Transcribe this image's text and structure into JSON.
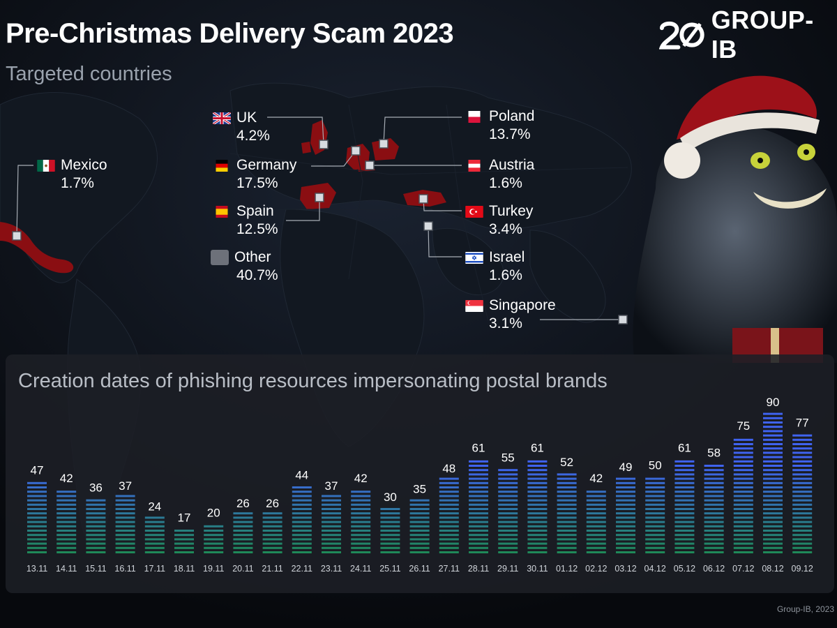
{
  "header": {
    "title": "Pre-Christmas Delivery Scam 2023",
    "subtitle": "Targeted countries",
    "logo_text": "GROUP-IB",
    "logo_number": "20"
  },
  "countries": [
    {
      "key": "uk",
      "name": "UK",
      "pct": "4.2%",
      "flag": "uk-flag-icon"
    },
    {
      "key": "germany",
      "name": "Germany",
      "pct": "17.5%",
      "flag": "germany-flag-icon"
    },
    {
      "key": "spain",
      "name": "Spain",
      "pct": "12.5%",
      "flag": "spain-flag-icon"
    },
    {
      "key": "other",
      "name": "Other",
      "pct": "40.7%",
      "flag": "gray-swatch"
    },
    {
      "key": "mexico",
      "name": "Mexico",
      "pct": "1.7%",
      "flag": "mexico-flag-icon"
    },
    {
      "key": "poland",
      "name": "Poland",
      "pct": "13.7%",
      "flag": "poland-flag-icon"
    },
    {
      "key": "austria",
      "name": "Austria",
      "pct": "1.6%",
      "flag": "austria-flag-icon"
    },
    {
      "key": "turkey",
      "name": "Turkey",
      "pct": "3.4%",
      "flag": "turkey-flag-icon"
    },
    {
      "key": "israel",
      "name": "Israel",
      "pct": "1.6%",
      "flag": "israel-flag-icon"
    },
    {
      "key": "singapore",
      "name": "Singapore",
      "pct": "3.1%",
      "flag": "singapore-flag-icon"
    }
  ],
  "chart_panel_title": "Creation dates of phishing resources impersonating postal brands",
  "chart_data": {
    "type": "bar",
    "title": "Creation dates of phishing resources impersonating postal brands",
    "categories": [
      "13.11",
      "14.11",
      "15.11",
      "16.11",
      "17.11",
      "18.11",
      "19.11",
      "20.11",
      "21.11",
      "22.11",
      "23.11",
      "24.11",
      "25.11",
      "26.11",
      "27.11",
      "28.11",
      "29.11",
      "30.11",
      "01.12",
      "02.12",
      "03.12",
      "04.12",
      "05.12",
      "06.12",
      "07.12",
      "08.12",
      "09.12"
    ],
    "values": [
      47,
      42,
      36,
      37,
      24,
      17,
      20,
      26,
      26,
      44,
      37,
      42,
      30,
      35,
      48,
      61,
      55,
      61,
      52,
      42,
      49,
      50,
      61,
      58,
      75,
      90,
      77
    ],
    "ylim": [
      0,
      90
    ],
    "grid": false,
    "bar_gradient": [
      "#3f63f0",
      "#1e8a55"
    ]
  },
  "credit": "Group-IB, 2023",
  "colors": {
    "background": "#07090d",
    "highlight_country": "#8a0e12",
    "panel": "#1c1f25"
  }
}
